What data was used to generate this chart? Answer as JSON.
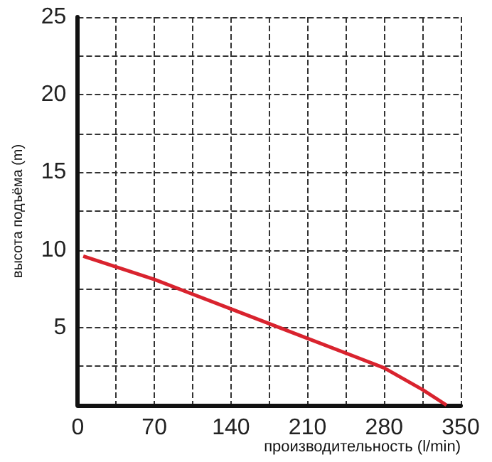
{
  "chart_data": {
    "type": "line",
    "xlabel": "производительность (l/min)",
    "ylabel": "высота подъёма (m)",
    "x": [
      5,
      70,
      140,
      210,
      280,
      315,
      337
    ],
    "series": [
      {
        "color": "#d9232e",
        "values": [
          9.6,
          8.1,
          6.2,
          4.3,
          2.4,
          1,
          0
        ]
      }
    ],
    "xlim": [
      0,
      350
    ],
    "ylim": [
      0,
      25
    ],
    "xticks": [
      0,
      {
        "value": 35,
        "label": null
      },
      70,
      {
        "value": 105,
        "label": null
      },
      140,
      {
        "value": 175,
        "label": null
      },
      210,
      {
        "value": 245,
        "label": null
      },
      280,
      {
        "value": 315,
        "label": null
      },
      350
    ],
    "yticks": [
      {
        "value": 0,
        "label": null
      },
      {
        "value": 2.5,
        "label": null
      },
      5,
      {
        "value": 7.5,
        "label": null
      },
      10,
      {
        "value": 12.5,
        "label": null
      },
      15,
      {
        "value": 17.5,
        "label": null
      },
      20,
      {
        "value": 22.5,
        "label": null
      },
      25
    ],
    "grid": true
  }
}
